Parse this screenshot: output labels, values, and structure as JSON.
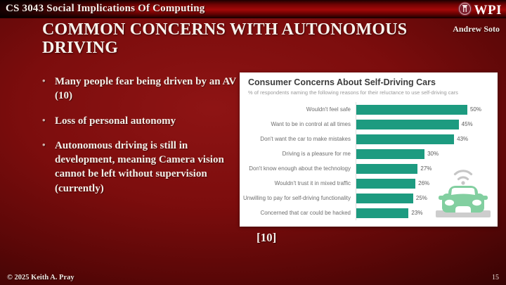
{
  "header": {
    "course_title": "CS 3043 Social Implications Of Computing",
    "logo_text": "WPI"
  },
  "author": "Andrew Soto",
  "title": "COMMON CONCERNS WITH AUTONOMOUS DRIVING",
  "bullets": [
    "Many people fear being driven by an AV (10)",
    "Loss of personal autonomy",
    "Autonomous driving is still in development, meaning Camera vision cannot be left without supervision (currently)"
  ],
  "citation": "[10]",
  "footer": {
    "copyright": "© 2025 Keith A. Pray",
    "page_number": "15"
  },
  "chart_data": {
    "type": "bar",
    "orientation": "horizontal",
    "title": "Consumer Concerns About Self-Driving Cars",
    "subtitle": "% of respondents naming the following reasons for their reluctance to use self-driving cars",
    "categories": [
      "Wouldn't feel safe",
      "Want to be in control at all times",
      "Don't want the car to make mistakes",
      "Driving is a pleasure for me",
      "Don't know enough about the technology",
      "Wouldn't trust it in mixed traffic",
      "Unwilling to pay for self-driving functionality",
      "Concerned that car could be hacked"
    ],
    "values": [
      50,
      45,
      43,
      30,
      27,
      26,
      25,
      23
    ],
    "unit": "%",
    "xlim": [
      0,
      55
    ],
    "grid": false,
    "legend": "none",
    "bar_color": "#1d9b80",
    "background": "#ffffff",
    "decoration": "connected-car-icon",
    "decoration_colors": {
      "car": "#82cfa0",
      "wifi": "#c6c6c6",
      "platform": "#cdcdcd"
    }
  }
}
